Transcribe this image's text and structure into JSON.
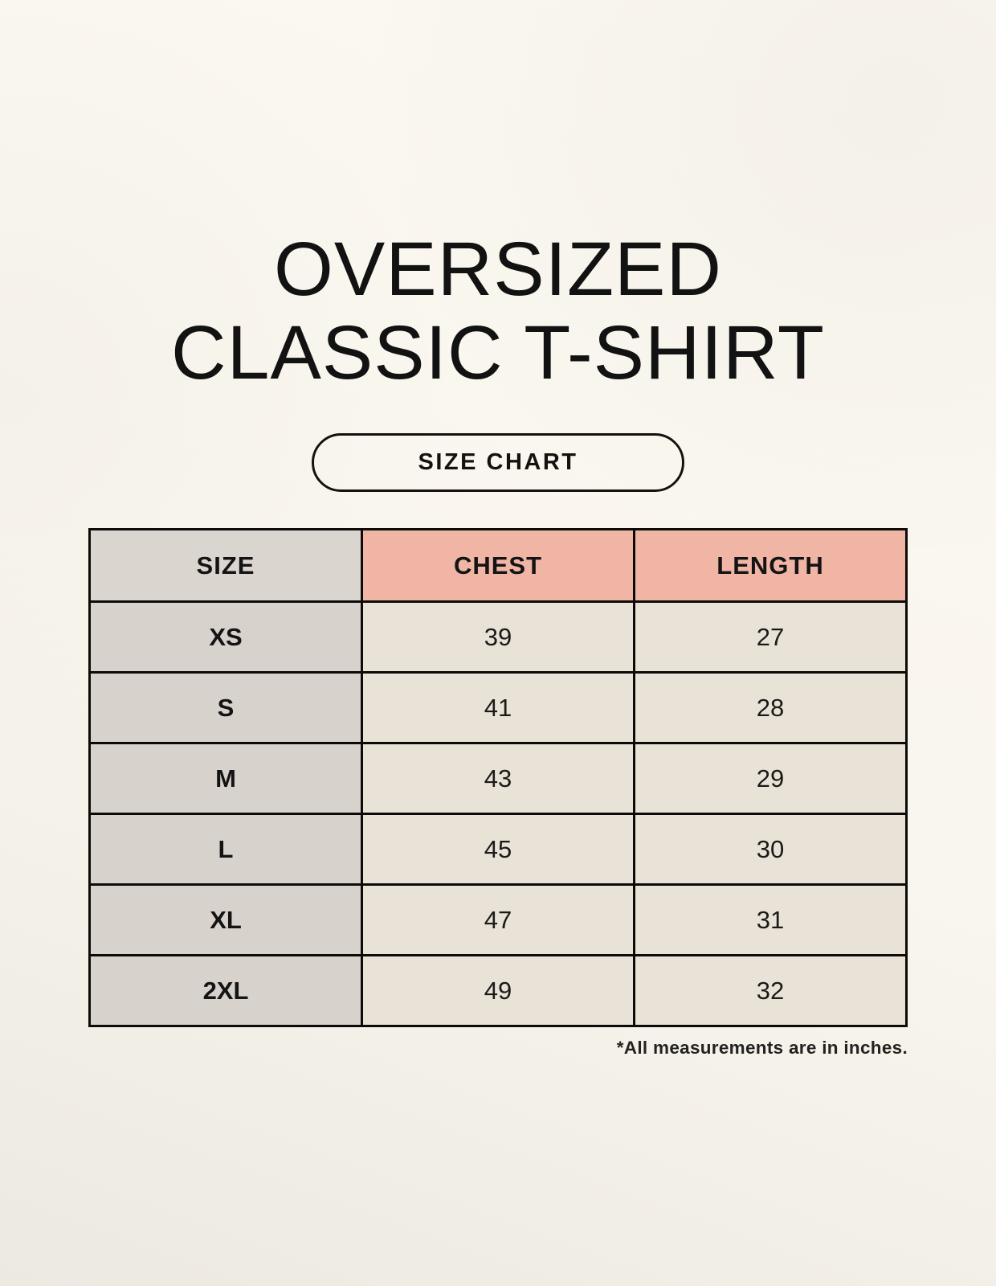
{
  "page": {
    "title_line1": "OVERSIZED",
    "title_line2": "CLASSIC T-SHIRT",
    "button_label": "SIZE CHART",
    "footnote": "*All measurements are in inches."
  },
  "colors": {
    "background": "#f9f6ee",
    "title_text": "#121212",
    "table_border": "#0d0b09",
    "header_size_bg": "#dbd5d0",
    "header_measure_bg": "#f0b5a5",
    "row_size_bg": "#d8d2cd",
    "row_value_bg": "#e9e2d6"
  },
  "size_chart": {
    "columns": [
      "SIZE",
      "CHEST",
      "LENGTH"
    ],
    "rows": [
      {
        "size": "XS",
        "chest": "39",
        "length": "27"
      },
      {
        "size": "S",
        "chest": "41",
        "length": "28"
      },
      {
        "size": "M",
        "chest": "43",
        "length": "29"
      },
      {
        "size": "L",
        "chest": "45",
        "length": "30"
      },
      {
        "size": "XL",
        "chest": "47",
        "length": "31"
      },
      {
        "size": "2XL",
        "chest": "49",
        "length": "32"
      }
    ],
    "units_note": "inches"
  }
}
